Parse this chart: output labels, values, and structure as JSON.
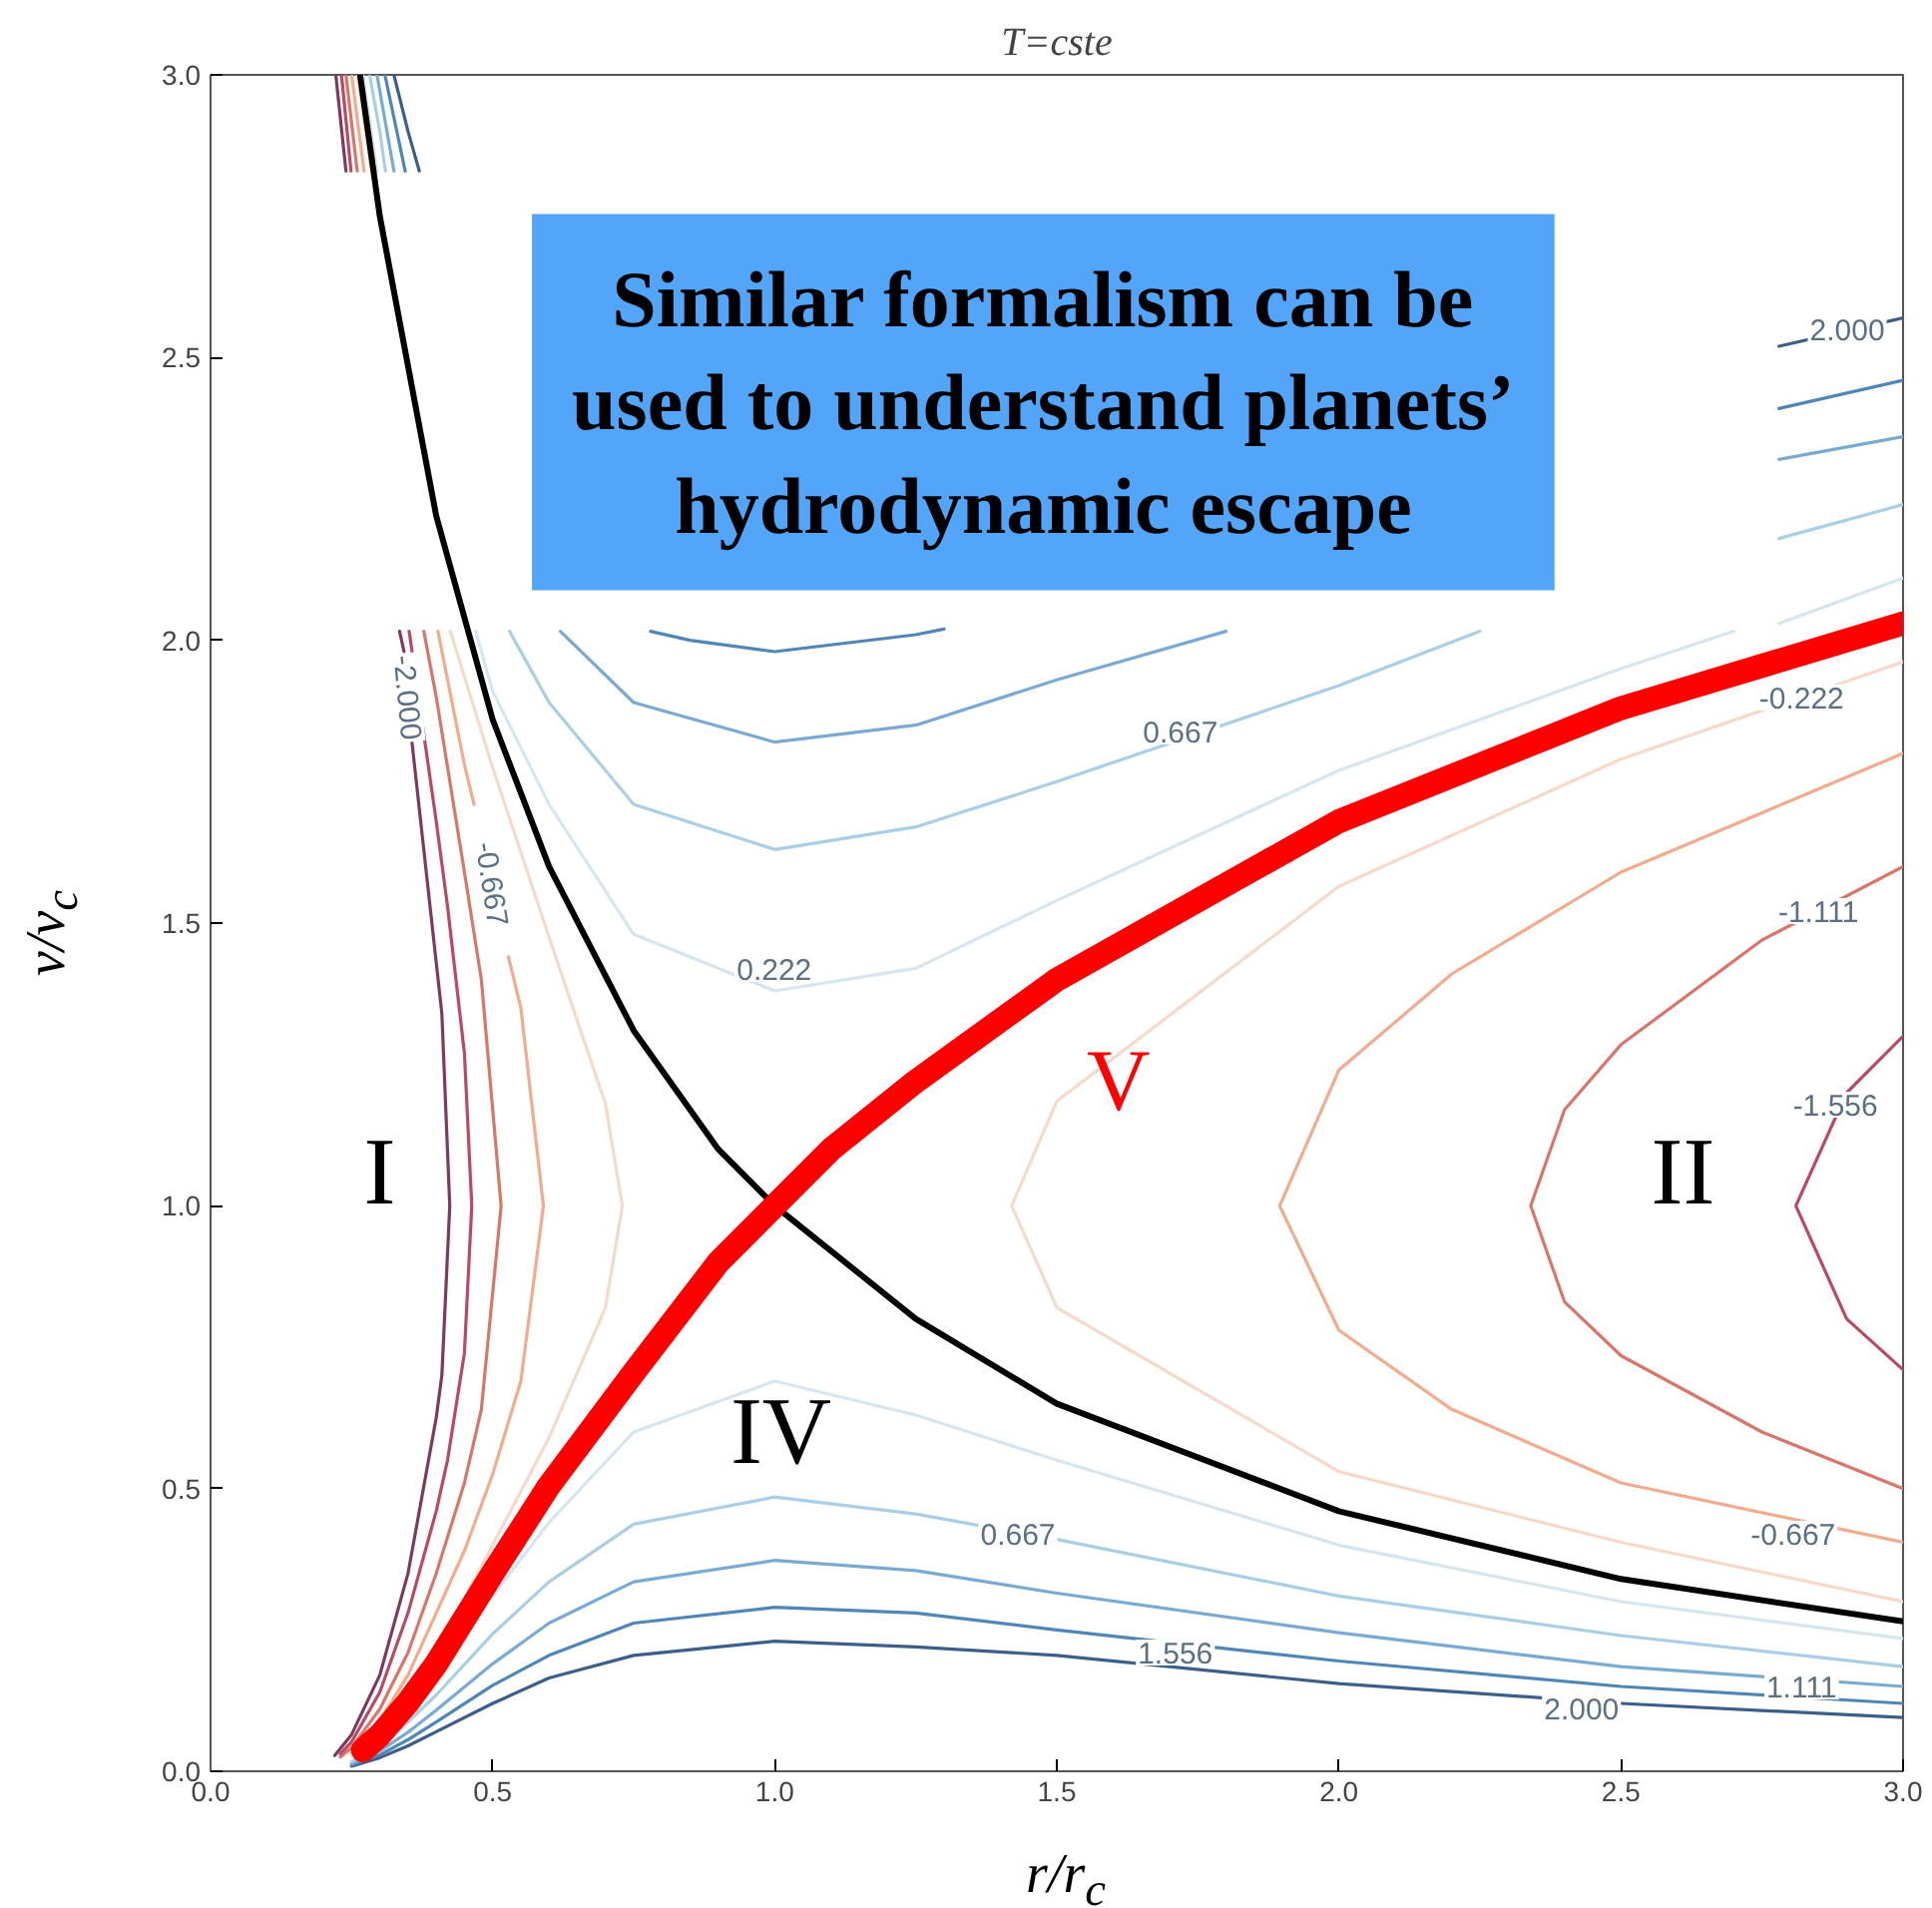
{
  "chart_data": {
    "type": "line",
    "title": "T=cste",
    "xlabel": "r/r$_{c}$",
    "ylabel": "v/v$_{c}$",
    "xlim": [
      0,
      3
    ],
    "ylim": [
      0,
      3
    ],
    "xticks": [
      {
        "value": 0,
        "label": "0.0"
      },
      {
        "value": 0.5,
        "label": "0.5"
      },
      {
        "value": 1,
        "label": "1.0"
      },
      {
        "value": 1.5,
        "label": "1.5"
      },
      {
        "value": 2,
        "label": "2.0"
      },
      {
        "value": 2.5,
        "label": "2.5"
      },
      {
        "value": 3,
        "label": "3.0"
      }
    ],
    "yticks": [
      {
        "value": 0,
        "label": "0.0"
      },
      {
        "value": 0.5,
        "label": "0.5"
      },
      {
        "value": 1,
        "label": "1.0"
      },
      {
        "value": 1.5,
        "label": "1.5"
      },
      {
        "value": 2,
        "label": "2.0"
      },
      {
        "value": 2.5,
        "label": "2.5"
      },
      {
        "value": 3,
        "label": "3.0"
      }
    ],
    "grid": false,
    "marker": "none",
    "line_style": "solid",
    "series": [
      {
        "color": "#3b5f8a",
        "x": [
          0.325,
          0.35,
          0.37,
          1.5,
          2.78,
          3.0
        ],
        "values": [
          3.0,
          2.9,
          2.83,
          null,
          2.52,
          2.57
        ]
      },
      {
        "color": "#4f86b8",
        "x": [
          0.309,
          0.345,
          0.56,
          0.78,
          0.85,
          1.0,
          1.25,
          1.3,
          1.5,
          2.78,
          3.0
        ],
        "values": [
          3.0,
          2.83,
          null,
          2.016,
          2.0,
          1.98,
          2.01,
          2.02,
          null,
          2.41,
          2.46
        ]
      },
      {
        "color": "#79aad2",
        "x": [
          0.295,
          0.325,
          0.5,
          0.62,
          0.75,
          1.0,
          1.25,
          1.5,
          1.8,
          2.3,
          2.78,
          3.0
        ],
        "values": [
          3.0,
          2.83,
          null,
          2.016,
          1.89,
          1.82,
          1.85,
          1.93,
          2.016,
          null,
          2.32,
          2.36
        ]
      },
      {
        "color": "#a9cfe5",
        "x": [
          0.282,
          0.3,
          0.31,
          0.45,
          0.53,
          0.6,
          0.75,
          1.0,
          1.25,
          1.5,
          2.0,
          2.25,
          2.5,
          2.78,
          3.0
        ],
        "values": [
          3.0,
          2.9,
          2.83,
          null,
          2.016,
          1.89,
          1.71,
          1.63,
          1.67,
          1.75,
          1.92,
          2.016,
          null,
          2.18,
          2.24
        ]
      },
      {
        "color": "#d6e6f0",
        "x": [
          0.27,
          0.295,
          0.4,
          0.47,
          0.5,
          0.6,
          0.75,
          1.0,
          1.25,
          1.5,
          2.0,
          2.5,
          2.7,
          2.74,
          2.78,
          3.0
        ],
        "values": [
          3.0,
          2.83,
          null,
          2.016,
          1.91,
          1.71,
          1.48,
          1.38,
          1.42,
          1.54,
          1.77,
          1.95,
          2.016,
          null,
          2.03,
          2.11
        ]
      },
      {
        "color": "#3b5f8a",
        "x": [
          0.25,
          0.3,
          0.35,
          0.4,
          0.5,
          0.6,
          0.75,
          1.0,
          1.25,
          1.5,
          2.0,
          2.5,
          3.0
        ],
        "values": [
          0.009,
          0.024,
          0.045,
          0.07,
          0.12,
          0.165,
          0.205,
          0.23,
          0.22,
          0.205,
          0.155,
          0.12,
          0.095
        ]
      },
      {
        "color": "#4f86b8",
        "x": [
          0.25,
          0.3,
          0.35,
          0.4,
          0.5,
          0.6,
          0.75,
          1.0,
          1.25,
          1.5,
          2.0,
          2.5,
          3.0
        ],
        "values": [
          0.011,
          0.029,
          0.056,
          0.087,
          0.152,
          0.205,
          0.262,
          0.29,
          0.28,
          0.25,
          0.195,
          0.15,
          0.12
        ]
      },
      {
        "color": "#79aad2",
        "x": [
          0.25,
          0.3,
          0.35,
          0.4,
          0.5,
          0.6,
          0.75,
          1.0,
          1.25,
          1.5,
          2.0,
          2.5,
          3.0
        ],
        "values": [
          0.014,
          0.036,
          0.069,
          0.108,
          0.19,
          0.262,
          0.335,
          0.373,
          0.355,
          0.315,
          0.245,
          0.185,
          0.15
        ]
      },
      {
        "color": "#a9cfe5",
        "x": [
          0.25,
          0.3,
          0.35,
          0.4,
          0.5,
          0.6,
          0.75,
          1.0,
          1.25,
          1.5,
          2.0,
          2.5,
          3.0
        ],
        "values": [
          0.017,
          0.046,
          0.087,
          0.135,
          0.243,
          0.335,
          0.437,
          0.485,
          0.455,
          0.41,
          0.31,
          0.24,
          0.185
        ]
      },
      {
        "color": "#d6e6f0",
        "x": [
          0.5,
          0.6,
          0.75,
          1.0,
          1.25,
          1.5,
          2.0,
          2.5,
          3.0
        ],
        "values": [
          0.31,
          0.44,
          0.6,
          0.69,
          0.63,
          0.55,
          0.4,
          0.3,
          0.235
        ]
      },
      {
        "color": "#f7d9c9",
        "x": [
          0.25,
          0.3,
          0.35,
          0.4,
          0.5,
          0.6,
          0.7,
          0.73,
          0.7,
          0.6,
          0.5,
          0.425,
          0.35,
          0.285,
          0.26
        ],
        "values": [
          0.027,
          0.071,
          0.135,
          0.21,
          0.4,
          0.59,
          0.82,
          1.0,
          1.18,
          1.475,
          1.775,
          2.016,
          null,
          2.83,
          3.0
        ]
      },
      {
        "color": "#f2ab8c",
        "x": [
          0.25,
          0.3,
          0.35,
          0.4,
          0.45,
          0.5,
          0.55,
          0.59,
          0.55,
          0.528,
          0.5,
          0.467,
          0.45,
          0.403,
          0.33,
          0.272,
          0.25
        ],
        "values": [
          0.034,
          0.09,
          0.17,
          0.28,
          0.39,
          0.525,
          0.69,
          1.0,
          1.35,
          1.44,
          null,
          1.71,
          1.78,
          2.016,
          null,
          2.83,
          3.0
        ]
      },
      {
        "color": "#d8766a",
        "x": [
          0.23,
          0.25,
          0.3,
          0.35,
          0.4,
          0.45,
          0.48,
          0.515,
          0.48,
          0.45,
          0.4,
          0.378,
          0.3,
          0.26,
          0.24
        ],
        "values": [
          0.025,
          0.042,
          0.11,
          0.21,
          0.35,
          0.51,
          0.64,
          1.0,
          1.4,
          1.59,
          1.9,
          2.016,
          null,
          2.83,
          3.0
        ]
      },
      {
        "color": "#b84a62",
        "x": [
          0.23,
          0.25,
          0.3,
          0.35,
          0.4,
          0.42,
          0.45,
          0.463,
          0.45,
          0.42,
          0.4,
          0.352,
          0.3,
          0.249,
          0.232
        ],
        "values": [
          0.031,
          0.052,
          0.14,
          0.28,
          0.46,
          0.55,
          0.74,
          1.0,
          1.27,
          1.53,
          1.68,
          2.016,
          null,
          2.83,
          3.0
        ]
      },
      {
        "color": "#7e3a5e",
        "x": [
          0.22,
          0.25,
          0.3,
          0.35,
          0.4,
          0.41,
          0.424,
          0.41,
          0.4,
          0.357,
          0.35,
          0.343,
          0.335,
          0.29,
          0.24,
          0.222
        ],
        "values": [
          0.028,
          0.065,
          0.17,
          0.35,
          0.625,
          0.7,
          1.0,
          1.34,
          1.43,
          1.82,
          null,
          1.98,
          2.016,
          null,
          2.83,
          3.0
        ]
      },
      {
        "color": "#f7d9c9",
        "x": [
          3.0,
          2.5,
          2.0,
          1.5,
          1.42,
          1.5,
          2.0,
          2.5,
          3.0
        ],
        "values": [
          0.3,
          0.405,
          0.53,
          0.82,
          1.0,
          1.185,
          1.565,
          1.79,
          1.962
        ]
      },
      {
        "color": "#f2ab8c",
        "x": [
          3.0,
          2.5,
          2.2,
          2.0,
          1.895,
          2.0,
          2.2,
          2.5,
          3.0
        ],
        "values": [
          0.405,
          0.51,
          0.64,
          0.78,
          1.0,
          1.24,
          1.41,
          1.59,
          1.8
        ]
      },
      {
        "color": "#d8766a",
        "x": [
          3.0,
          2.75,
          2.5,
          2.4,
          2.34,
          2.4,
          2.5,
          2.75,
          3.0
        ],
        "values": [
          0.5,
          0.6,
          0.735,
          0.83,
          1.0,
          1.17,
          1.285,
          1.47,
          1.6
        ]
      },
      {
        "color": "#b84a62",
        "x": [
          3.0,
          2.9,
          2.81,
          2.9,
          3.0
        ],
        "values": [
          0.71,
          0.8,
          1.0,
          1.2,
          1.3
        ]
      },
      {
        "color": "#000000",
        "x": [
          0.265,
          0.3,
          0.4,
          0.5,
          0.6,
          0.75,
          0.9,
          1.0,
          1.25,
          1.5,
          2.0,
          2.5,
          3.0
        ],
        "values": [
          3.0,
          2.75,
          2.22,
          1.86,
          1.6,
          1.31,
          1.1,
          1.0,
          0.8,
          0.65,
          0.46,
          0.34,
          0.265
        ]
      },
      {
        "name": "V",
        "color": "#ff0000",
        "x": [
          0.27,
          0.3,
          0.35,
          0.4,
          0.5,
          0.6,
          0.75,
          0.9,
          1.0,
          1.1,
          1.25,
          1.5,
          2.0,
          2.5,
          3.0
        ],
        "values": [
          0.037,
          0.064,
          0.122,
          0.19,
          0.35,
          0.505,
          0.705,
          0.9,
          1.0,
          1.1,
          1.22,
          1.4,
          1.68,
          1.88,
          2.03
        ]
      }
    ],
    "annotations": [
      "Similar formalism can be used to understand planets’ hydrodynamic escape",
      "I",
      "II",
      "IV",
      "2.000",
      "0.667",
      "0.222",
      "-0.222",
      "-1.111",
      "-1.556",
      "-0.667",
      "-2.000",
      "-0.667",
      "0.667",
      "1.556",
      "2.000",
      "1.111"
    ]
  }
}
